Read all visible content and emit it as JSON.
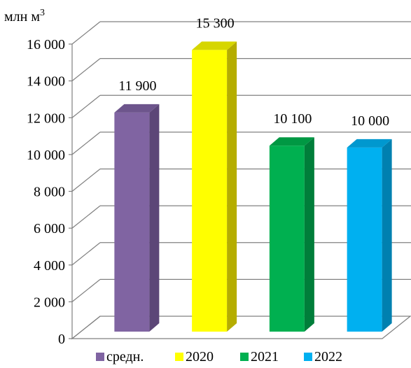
{
  "chart_data": {
    "type": "bar",
    "unit_label": "млн м",
    "unit_superscript": "3",
    "categories": [
      "средн.",
      "2020",
      "2021",
      "2022"
    ],
    "values": [
      11900,
      15300,
      10100,
      10000
    ],
    "value_labels": [
      "11 900",
      "15 300",
      "10 100",
      "10 000"
    ],
    "colors": [
      "#8064a2",
      "#ffff00",
      "#00b050",
      "#00b0f0"
    ],
    "side_colors": [
      "#5c4677",
      "#b5ad00",
      "#007e3a",
      "#0080b0"
    ],
    "top_colors": [
      "#6d558c",
      "#d6d600",
      "#009843",
      "#0098cf"
    ],
    "y_ticks": [
      "0",
      "2 000",
      "4 000",
      "6 000",
      "8 000",
      "10 000",
      "12 000",
      "14 000",
      "16 000"
    ],
    "y_tick_values": [
      0,
      2000,
      4000,
      6000,
      8000,
      10000,
      12000,
      14000,
      16000
    ],
    "ylim": [
      0,
      16000
    ],
    "grid": true,
    "legend": "bottom",
    "legend_entries": [
      "средн.",
      "2020",
      "2021",
      "2022"
    ]
  }
}
